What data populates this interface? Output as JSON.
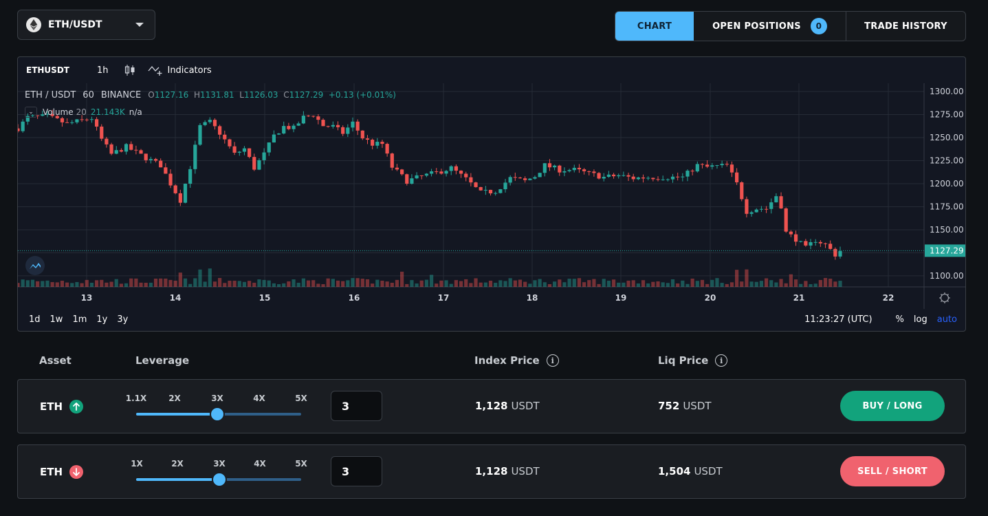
{
  "pair_selector": {
    "label": "ETH/USDT"
  },
  "tabs": {
    "chart": "CHART",
    "open_positions": "OPEN POSITIONS",
    "open_positions_count": "0",
    "trade_history": "TRADE HISTORY"
  },
  "chart": {
    "toolbar": {
      "symbol": "ETHUSDT",
      "interval": "1h",
      "indicators": "Indicators"
    },
    "legend": {
      "pair": "ETH / USDT",
      "interval": "60",
      "exchange": "BINANCE",
      "o_label": "O",
      "o": "1127.16",
      "h_label": "H",
      "h": "1131.81",
      "l_label": "L",
      "l": "1126.03",
      "c_label": "C",
      "c": "1127.29",
      "change": "+0.13 (+0.01%)"
    },
    "volume_legend": {
      "name": "Volume",
      "length": "20",
      "value": "21.143K",
      "value2": "n/a"
    },
    "footer": {
      "ranges": [
        "1d",
        "1w",
        "1m",
        "1y",
        "3y"
      ],
      "clock": "11:23:27 (UTC)",
      "percent": "%",
      "log": "log",
      "auto": "auto"
    },
    "colors": {
      "up": "#26a69a",
      "down": "#ef5350",
      "background": "#131722",
      "grid": "#262b36"
    }
  },
  "chart_data": {
    "type": "candlestick",
    "y_ticks": [
      1100,
      1125,
      1150,
      1175,
      1200,
      1225,
      1250,
      1275,
      1300
    ],
    "y_tick_labels": [
      "1100.00",
      "1125.00",
      "1150.00",
      "1175.00",
      "1200.00",
      "1225.00",
      "1250.00",
      "1275.00",
      "1300.00"
    ],
    "ylim": [
      1088,
      1309
    ],
    "x_labels": [
      "13",
      "14",
      "15",
      "16",
      "17",
      "18",
      "19",
      "20",
      "21",
      "22"
    ],
    "last_price": 1127.29,
    "last_price_label": "1127.29",
    "close_path": [
      [
        0,
        1260
      ],
      [
        2,
        1272
      ],
      [
        6,
        1273
      ],
      [
        10,
        1265
      ],
      [
        15,
        1271
      ],
      [
        17,
        1248
      ],
      [
        19,
        1232
      ],
      [
        22,
        1240
      ],
      [
        26,
        1228
      ],
      [
        29,
        1220
      ],
      [
        31,
        1200
      ],
      [
        33,
        1182
      ],
      [
        35,
        1218
      ],
      [
        37,
        1262
      ],
      [
        39,
        1267
      ],
      [
        41,
        1255
      ],
      [
        44,
        1232
      ],
      [
        46,
        1238
      ],
      [
        48,
        1217
      ],
      [
        50,
        1232
      ],
      [
        52,
        1252
      ],
      [
        54,
        1262
      ],
      [
        56,
        1260
      ],
      [
        58,
        1272
      ],
      [
        60,
        1275
      ],
      [
        62,
        1263
      ],
      [
        64,
        1262
      ],
      [
        66,
        1255
      ],
      [
        68,
        1266
      ],
      [
        70,
        1250
      ],
      [
        72,
        1243
      ],
      [
        74,
        1243
      ],
      [
        76,
        1218
      ],
      [
        79,
        1203
      ],
      [
        82,
        1208
      ],
      [
        85,
        1212
      ],
      [
        88,
        1217
      ],
      [
        91,
        1205
      ],
      [
        94,
        1190
      ],
      [
        97,
        1192
      ],
      [
        100,
        1206
      ],
      [
        103,
        1203
      ],
      [
        105,
        1208
      ],
      [
        107,
        1220
      ],
      [
        110,
        1215
      ],
      [
        113,
        1215
      ],
      [
        116,
        1211
      ],
      [
        119,
        1207
      ],
      [
        122,
        1209
      ],
      [
        125,
        1206
      ],
      [
        128,
        1207
      ],
      [
        132,
        1207
      ],
      [
        135,
        1207
      ],
      [
        138,
        1220
      ],
      [
        140,
        1218
      ],
      [
        142,
        1219
      ],
      [
        144,
        1220
      ],
      [
        146,
        1200
      ],
      [
        148,
        1170
      ],
      [
        150,
        1173
      ],
      [
        152,
        1173
      ],
      [
        154,
        1187
      ],
      [
        155,
        1176
      ],
      [
        156,
        1147
      ],
      [
        158,
        1140
      ],
      [
        160,
        1130
      ],
      [
        162,
        1139
      ],
      [
        164,
        1134
      ],
      [
        166,
        1123
      ],
      [
        167,
        1127
      ]
    ],
    "candle_count": 168,
    "volume_spikes": [
      [
        14,
        1.3
      ],
      [
        33,
        2.0
      ],
      [
        37,
        2.4
      ],
      [
        39,
        2.8
      ],
      [
        44,
        1.6
      ],
      [
        78,
        1.8
      ],
      [
        80,
        1.7
      ],
      [
        84,
        1.6
      ],
      [
        146,
        2.6
      ],
      [
        148,
        2.2
      ],
      [
        155,
        1.9
      ],
      [
        157,
        1.7
      ]
    ]
  },
  "trade_headers": {
    "asset": "Asset",
    "leverage": "Leverage",
    "index_price": "Index Price",
    "liq_price": "Liq Price"
  },
  "rows": [
    {
      "asset": "ETH",
      "direction": "up",
      "leverage_labels": [
        "1.1X",
        "2X",
        "3X",
        "4X",
        "5X"
      ],
      "leverage_value": "3",
      "index_price": "1,128",
      "index_unit": "USDT",
      "liq_price": "752",
      "liq_unit": "USDT",
      "button": "BUY / LONG"
    },
    {
      "asset": "ETH",
      "direction": "down",
      "leverage_labels": [
        "1X",
        "2X",
        "3X",
        "4X",
        "5X"
      ],
      "leverage_value": "3",
      "index_price": "1,128",
      "index_unit": "USDT",
      "liq_price": "1,504",
      "liq_unit": "USDT",
      "button": "SELL / SHORT"
    }
  ]
}
